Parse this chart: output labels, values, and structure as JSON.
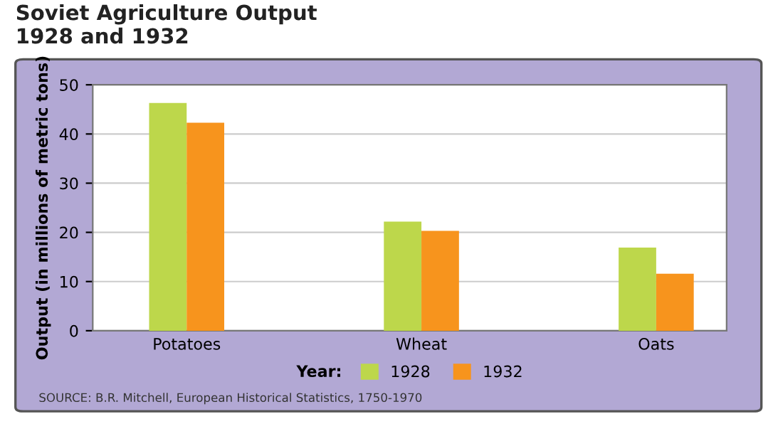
{
  "chart_data": {
    "type": "bar",
    "title": "Soviet Agriculture Output\n1928 and 1932",
    "ylabel": "Output (in millions of metric tons)",
    "legend_title": "Year:",
    "categories": [
      "Potatoes",
      "Wheat",
      "Oats"
    ],
    "series": [
      {
        "name": "1928",
        "color": "#bdd74b",
        "values": [
          46.3,
          22.2,
          16.9
        ]
      },
      {
        "name": "1932",
        "color": "#f7941d",
        "values": [
          42.3,
          20.3,
          11.6
        ]
      }
    ],
    "ylim": [
      0,
      50
    ],
    "yticks": [
      0,
      10,
      20,
      30,
      40,
      50
    ],
    "grid": "y",
    "legend": "bottom",
    "annotations": [
      "SOURCE: B.R. Mitchell, European Historical Statistics, 1750-1970"
    ]
  }
}
